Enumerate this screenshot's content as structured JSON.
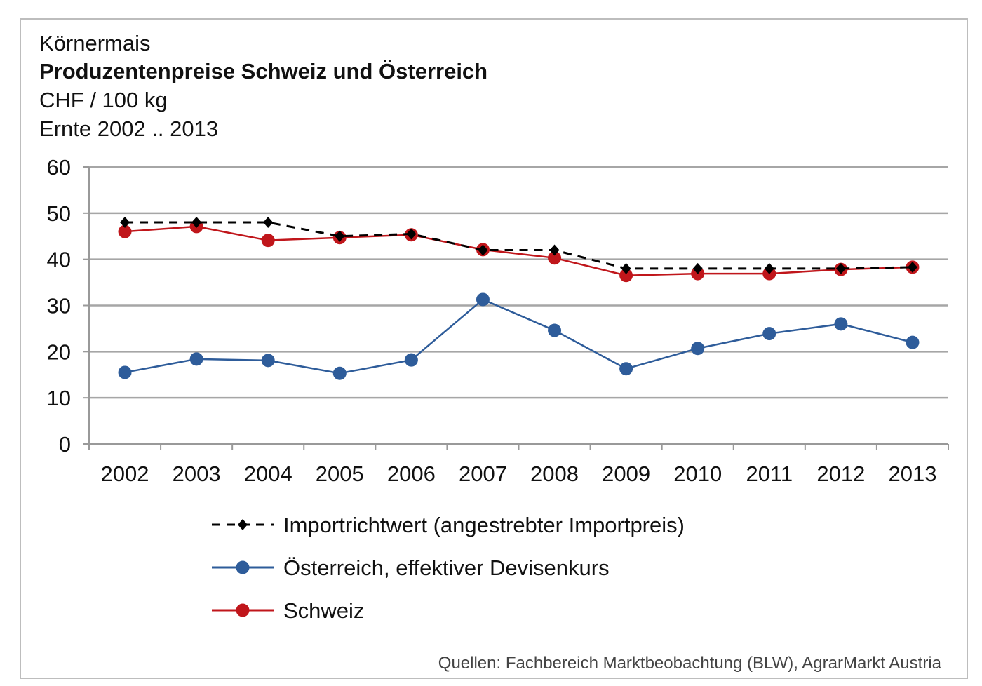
{
  "chart_data": {
    "type": "line",
    "title_lines": [
      "Körnermais",
      "Produzentenpreise Schweiz und Österreich",
      "CHF / 100 kg",
      "Ernte 2002 .. 2013"
    ],
    "categories": [
      "2002",
      "2003",
      "2004",
      "2005",
      "2006",
      "2007",
      "2008",
      "2009",
      "2010",
      "2011",
      "2012",
      "2013"
    ],
    "ylim": [
      0,
      60
    ],
    "yticks": [
      0,
      10,
      20,
      30,
      40,
      50,
      60
    ],
    "grid": true,
    "legend_position": "bottom",
    "series": [
      {
        "name": "Importrichtwert (angestrebter Importpreis)",
        "color": "#000000",
        "style": "dashed",
        "marker": "diamond",
        "values": [
          48,
          48,
          48,
          45,
          45.5,
          42,
          42,
          38,
          38,
          38,
          38,
          38.3
        ]
      },
      {
        "name": "Österreich, effektiver Devisenkurs",
        "color": "#2e5c9a",
        "style": "solid",
        "marker": "circle",
        "values": [
          15.5,
          18.4,
          18.1,
          15.3,
          18.2,
          31.3,
          24.6,
          16.3,
          20.7,
          23.9,
          26.0,
          22.0
        ]
      },
      {
        "name": "Schweiz",
        "color": "#c0161b",
        "style": "solid",
        "marker": "circle",
        "values": [
          46.0,
          47.1,
          44.1,
          44.7,
          45.3,
          42.1,
          40.3,
          36.5,
          36.9,
          36.9,
          37.8,
          38.3
        ]
      }
    ],
    "source": "Quellen: Fachbereich Marktbeobachtung (BLW),  AgrarMarkt Austria"
  }
}
